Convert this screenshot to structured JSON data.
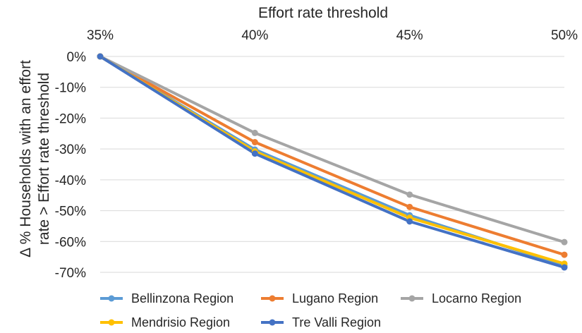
{
  "chart_data": {
    "type": "line",
    "title": "",
    "xlabel": "Effort rate threshold",
    "ylabel_lines": [
      "Δ %  Households with an effort",
      "rate > Effort rate threshold"
    ],
    "x": [
      "35%",
      "40%",
      "45%",
      "50%"
    ],
    "x_axis_position": "top",
    "ylim": [
      -70,
      0
    ],
    "y_ticks": [
      0,
      -10,
      -20,
      -30,
      -40,
      -50,
      -60,
      -70
    ],
    "y_tick_labels": [
      "0%",
      "-10%",
      "-20%",
      "-30%",
      "-40%",
      "-50%",
      "-60%",
      "-70%"
    ],
    "grid": true,
    "legend_position": "bottom",
    "series": [
      {
        "name": "Bellinzona Region",
        "color": "#5B9BD5",
        "values": [
          0,
          -30.2,
          -51.5,
          -67.8
        ]
      },
      {
        "name": "Lugano Region",
        "color": "#ED7D31",
        "values": [
          0,
          -27.8,
          -48.8,
          -64.3
        ]
      },
      {
        "name": "Locarno Region",
        "color": "#A5A5A5",
        "values": [
          0,
          -24.8,
          -44.8,
          -60.2
        ]
      },
      {
        "name": "Mendrisio Region",
        "color": "#FFC000",
        "values": [
          0,
          -30.8,
          -52.3,
          -67.2
        ]
      },
      {
        "name": "Tre Valli Region",
        "color": "#4472C4",
        "values": [
          0,
          -31.5,
          -53.5,
          -68.4
        ]
      }
    ]
  }
}
